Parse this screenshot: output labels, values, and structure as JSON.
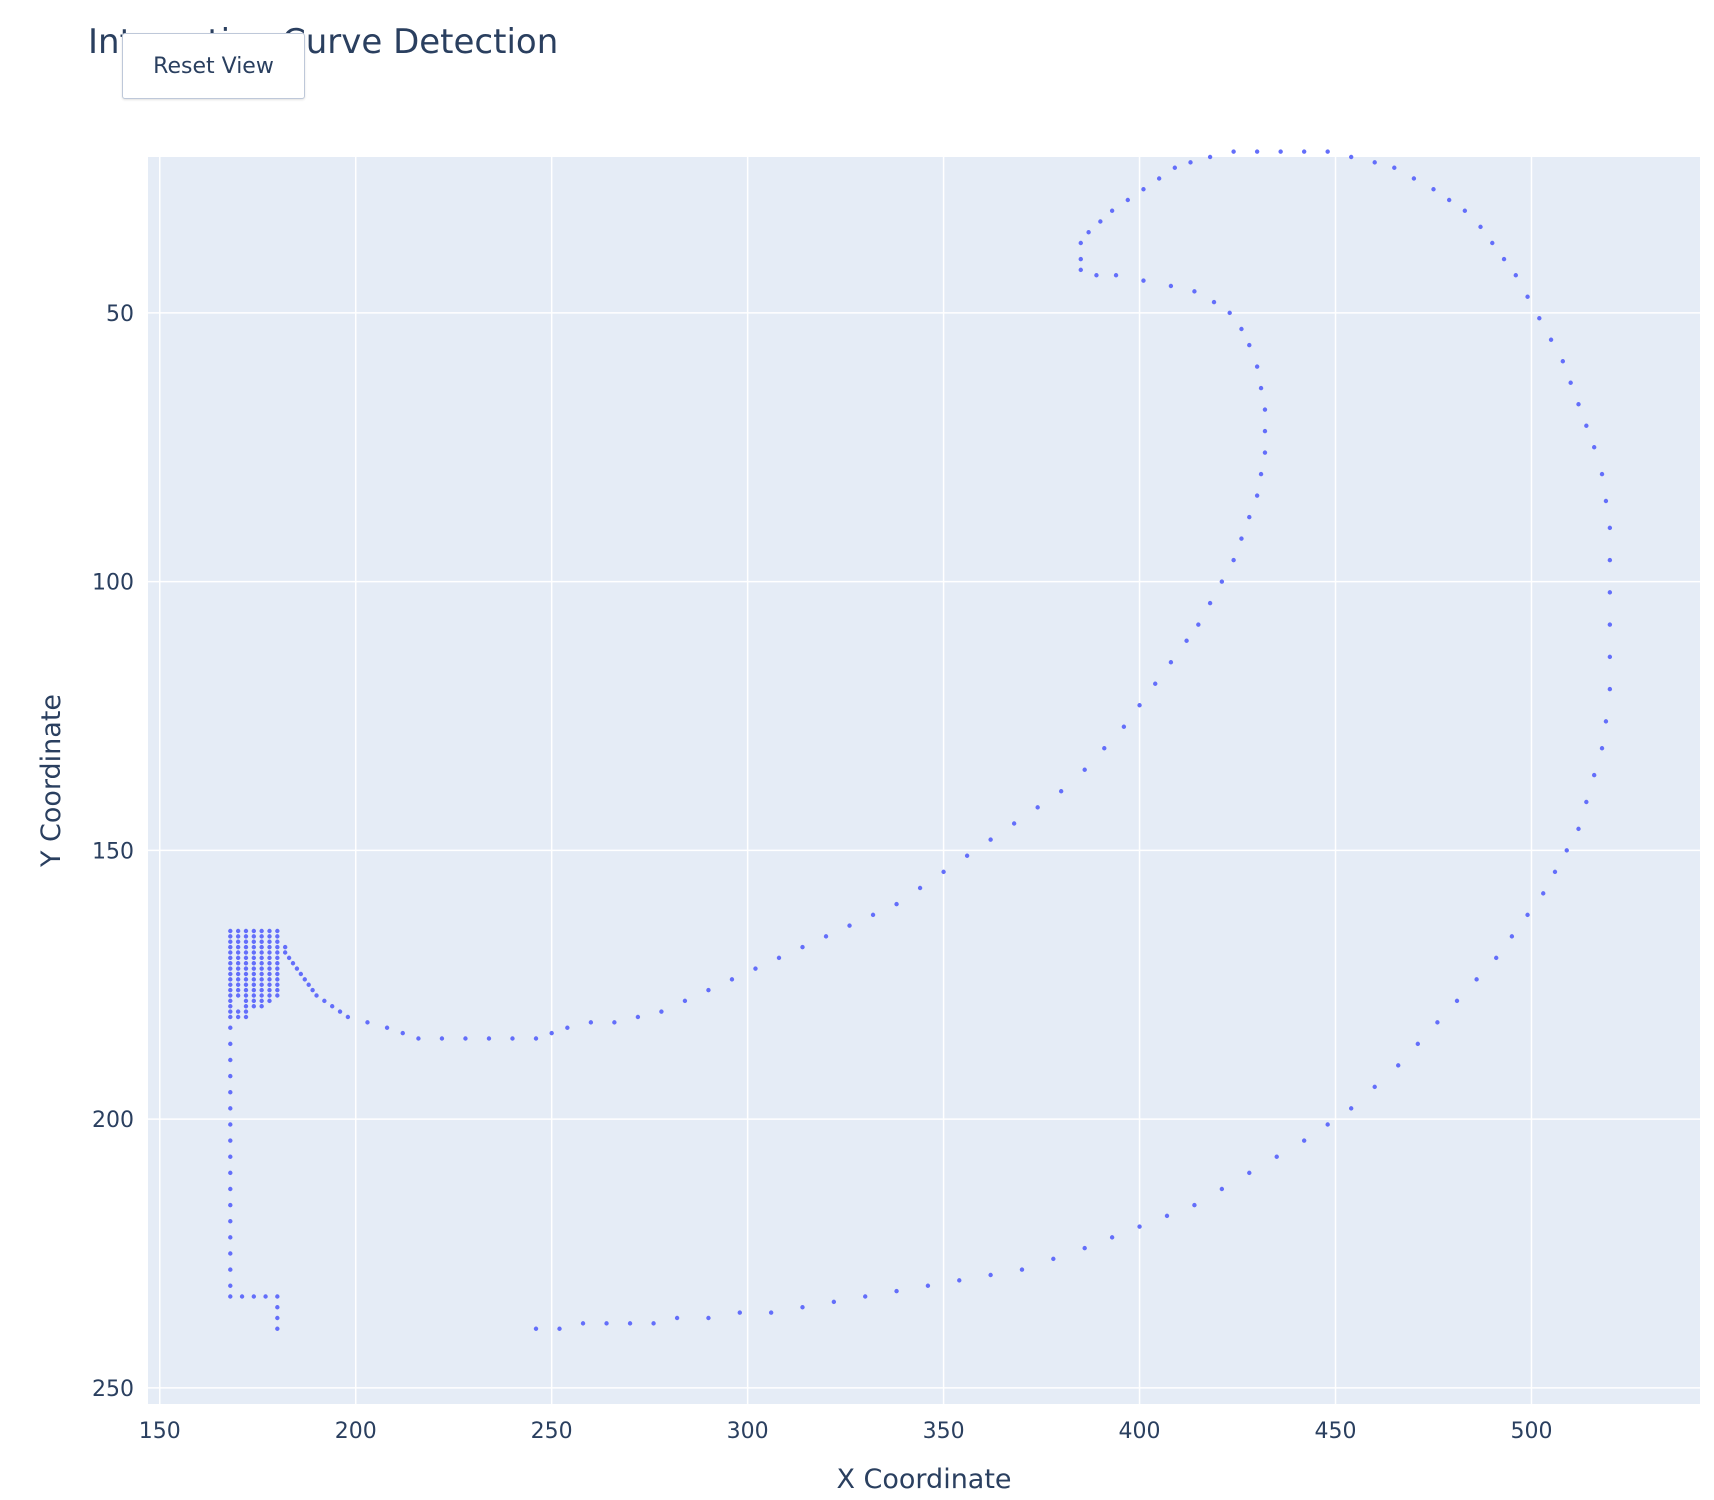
{
  "chart_title": "Interactive Curve Detection",
  "reset_button_label": "Reset View",
  "chart_data": {
    "type": "scatter",
    "title": "Interactive Curve Detection",
    "xlabel": "X Coordinate",
    "ylabel": "Y Coordinate",
    "xlim": [
      147,
      543
    ],
    "ylim": [
      253,
      21
    ],
    "y_reversed": true,
    "x_ticks": [
      150,
      200,
      250,
      300,
      350,
      400,
      450,
      500
    ],
    "y_ticks": [
      50,
      100,
      150,
      200,
      250
    ],
    "grid": true,
    "legend": "none",
    "marker_color": "#636efa",
    "plot_bg": "#e5ecf6",
    "series": [
      {
        "values": [
          [
            168,
            165
          ],
          [
            170,
            165
          ],
          [
            172,
            165
          ],
          [
            174,
            165
          ],
          [
            176,
            165
          ],
          [
            178,
            165
          ],
          [
            180,
            165
          ],
          [
            168,
            166
          ],
          [
            170,
            166
          ],
          [
            172,
            166
          ],
          [
            174,
            166
          ],
          [
            176,
            166
          ],
          [
            178,
            166
          ],
          [
            180,
            166
          ],
          [
            168,
            167
          ],
          [
            170,
            167
          ],
          [
            172,
            167
          ],
          [
            174,
            167
          ],
          [
            176,
            167
          ],
          [
            178,
            167
          ],
          [
            180,
            167
          ],
          [
            168,
            168
          ],
          [
            170,
            168
          ],
          [
            172,
            168
          ],
          [
            174,
            168
          ],
          [
            176,
            168
          ],
          [
            178,
            168
          ],
          [
            180,
            168
          ],
          [
            182,
            168
          ],
          [
            168,
            169
          ],
          [
            170,
            169
          ],
          [
            172,
            169
          ],
          [
            174,
            169
          ],
          [
            176,
            169
          ],
          [
            178,
            169
          ],
          [
            180,
            169
          ],
          [
            182,
            169
          ],
          [
            168,
            170
          ],
          [
            170,
            170
          ],
          [
            172,
            170
          ],
          [
            174,
            170
          ],
          [
            176,
            170
          ],
          [
            178,
            170
          ],
          [
            180,
            170
          ],
          [
            183,
            170
          ],
          [
            168,
            171
          ],
          [
            170,
            171
          ],
          [
            172,
            171
          ],
          [
            174,
            171
          ],
          [
            176,
            171
          ],
          [
            178,
            171
          ],
          [
            180,
            171
          ],
          [
            184,
            171
          ],
          [
            168,
            172
          ],
          [
            170,
            172
          ],
          [
            172,
            172
          ],
          [
            174,
            172
          ],
          [
            176,
            172
          ],
          [
            178,
            172
          ],
          [
            180,
            172
          ],
          [
            185,
            172
          ],
          [
            168,
            173
          ],
          [
            170,
            173
          ],
          [
            172,
            173
          ],
          [
            174,
            173
          ],
          [
            176,
            173
          ],
          [
            178,
            173
          ],
          [
            180,
            173
          ],
          [
            186,
            173
          ],
          [
            168,
            174
          ],
          [
            170,
            174
          ],
          [
            172,
            174
          ],
          [
            174,
            174
          ],
          [
            176,
            174
          ],
          [
            178,
            174
          ],
          [
            180,
            174
          ],
          [
            187,
            174
          ],
          [
            168,
            175
          ],
          [
            170,
            175
          ],
          [
            172,
            175
          ],
          [
            174,
            175
          ],
          [
            176,
            175
          ],
          [
            178,
            175
          ],
          [
            180,
            175
          ],
          [
            188,
            175
          ],
          [
            168,
            176
          ],
          [
            170,
            176
          ],
          [
            172,
            176
          ],
          [
            174,
            176
          ],
          [
            176,
            176
          ],
          [
            178,
            176
          ],
          [
            180,
            176
          ],
          [
            189,
            176
          ],
          [
            168,
            177
          ],
          [
            170,
            177
          ],
          [
            172,
            177
          ],
          [
            174,
            177
          ],
          [
            176,
            177
          ],
          [
            178,
            177
          ],
          [
            180,
            177
          ],
          [
            190,
            177
          ],
          [
            168,
            178
          ],
          [
            172,
            178
          ],
          [
            174,
            178
          ],
          [
            176,
            178
          ],
          [
            178,
            178
          ],
          [
            192,
            178
          ],
          [
            168,
            179
          ],
          [
            172,
            179
          ],
          [
            174,
            179
          ],
          [
            176,
            179
          ],
          [
            194,
            179
          ],
          [
            168,
            180
          ],
          [
            170,
            180
          ],
          [
            172,
            180
          ],
          [
            196,
            180
          ],
          [
            168,
            181
          ],
          [
            170,
            181
          ],
          [
            172,
            181
          ],
          [
            198,
            181
          ],
          [
            203,
            182
          ],
          [
            208,
            183
          ],
          [
            212,
            184
          ],
          [
            216,
            185
          ],
          [
            222,
            185
          ],
          [
            228,
            185
          ],
          [
            234,
            185
          ],
          [
            240,
            185
          ],
          [
            246,
            185
          ],
          [
            250,
            184
          ],
          [
            254,
            183
          ],
          [
            260,
            182
          ],
          [
            266,
            182
          ],
          [
            272,
            181
          ],
          [
            278,
            180
          ],
          [
            284,
            178
          ],
          [
            290,
            176
          ],
          [
            296,
            174
          ],
          [
            302,
            172
          ],
          [
            308,
            170
          ],
          [
            314,
            168
          ],
          [
            320,
            166
          ],
          [
            326,
            164
          ],
          [
            332,
            162
          ],
          [
            338,
            160
          ],
          [
            344,
            157
          ],
          [
            350,
            154
          ],
          [
            356,
            151
          ],
          [
            362,
            148
          ],
          [
            368,
            145
          ],
          [
            374,
            142
          ],
          [
            380,
            139
          ],
          [
            386,
            135
          ],
          [
            391,
            131
          ],
          [
            396,
            127
          ],
          [
            400,
            123
          ],
          [
            404,
            119
          ],
          [
            408,
            115
          ],
          [
            412,
            111
          ],
          [
            415,
            108
          ],
          [
            418,
            104
          ],
          [
            421,
            100
          ],
          [
            424,
            96
          ],
          [
            426,
            92
          ],
          [
            428,
            88
          ],
          [
            430,
            84
          ],
          [
            431,
            80
          ],
          [
            432,
            76
          ],
          [
            432,
            72
          ],
          [
            432,
            68
          ],
          [
            431,
            64
          ],
          [
            430,
            60
          ],
          [
            428,
            56
          ],
          [
            426,
            53
          ],
          [
            423,
            50
          ],
          [
            419,
            48
          ],
          [
            414,
            46
          ],
          [
            408,
            45
          ],
          [
            401,
            44
          ],
          [
            394,
            43
          ],
          [
            389,
            43
          ],
          [
            385,
            42
          ],
          [
            385,
            40
          ],
          [
            385,
            37
          ],
          [
            387,
            35
          ],
          [
            390,
            33
          ],
          [
            393,
            31
          ],
          [
            397,
            29
          ],
          [
            401,
            27
          ],
          [
            405,
            25
          ],
          [
            409,
            23
          ],
          [
            413,
            22
          ],
          [
            418,
            21
          ],
          [
            424,
            20
          ],
          [
            430,
            20
          ],
          [
            436,
            20
          ],
          [
            442,
            20
          ],
          [
            448,
            20
          ],
          [
            454,
            21
          ],
          [
            460,
            22
          ],
          [
            465,
            23
          ],
          [
            470,
            25
          ],
          [
            475,
            27
          ],
          [
            479,
            29
          ],
          [
            483,
            31
          ],
          [
            487,
            34
          ],
          [
            490,
            37
          ],
          [
            493,
            40
          ],
          [
            496,
            43
          ],
          [
            499,
            47
          ],
          [
            502,
            51
          ],
          [
            505,
            55
          ],
          [
            508,
            59
          ],
          [
            510,
            63
          ],
          [
            512,
            67
          ],
          [
            514,
            71
          ],
          [
            516,
            75
          ],
          [
            518,
            80
          ],
          [
            519,
            85
          ],
          [
            520,
            90
          ],
          [
            520,
            96
          ],
          [
            520,
            102
          ],
          [
            520,
            108
          ],
          [
            520,
            114
          ],
          [
            520,
            120
          ],
          [
            519,
            126
          ],
          [
            518,
            131
          ],
          [
            516,
            136
          ],
          [
            514,
            141
          ],
          [
            512,
            146
          ],
          [
            509,
            150
          ],
          [
            506,
            154
          ],
          [
            503,
            158
          ],
          [
            499,
            162
          ],
          [
            495,
            166
          ],
          [
            491,
            170
          ],
          [
            486,
            174
          ],
          [
            481,
            178
          ],
          [
            476,
            182
          ],
          [
            471,
            186
          ],
          [
            466,
            190
          ],
          [
            460,
            194
          ],
          [
            454,
            198
          ],
          [
            448,
            201
          ],
          [
            442,
            204
          ],
          [
            435,
            207
          ],
          [
            428,
            210
          ],
          [
            421,
            213
          ],
          [
            414,
            216
          ],
          [
            407,
            218
          ],
          [
            400,
            220
          ],
          [
            393,
            222
          ],
          [
            386,
            224
          ],
          [
            378,
            226
          ],
          [
            370,
            228
          ],
          [
            362,
            229
          ],
          [
            354,
            230
          ],
          [
            346,
            231
          ],
          [
            338,
            232
          ],
          [
            330,
            233
          ],
          [
            322,
            234
          ],
          [
            314,
            235
          ],
          [
            306,
            236
          ],
          [
            298,
            236
          ],
          [
            290,
            237
          ],
          [
            282,
            237
          ],
          [
            276,
            238
          ],
          [
            270,
            238
          ],
          [
            264,
            238
          ],
          [
            258,
            238
          ],
          [
            252,
            239
          ],
          [
            246,
            239
          ],
          [
            168,
            183
          ],
          [
            168,
            186
          ],
          [
            168,
            189
          ],
          [
            168,
            192
          ],
          [
            168,
            195
          ],
          [
            168,
            198
          ],
          [
            168,
            201
          ],
          [
            168,
            204
          ],
          [
            168,
            207
          ],
          [
            168,
            210
          ],
          [
            168,
            213
          ],
          [
            168,
            216
          ],
          [
            168,
            219
          ],
          [
            168,
            222
          ],
          [
            168,
            225
          ],
          [
            168,
            228
          ],
          [
            168,
            231
          ],
          [
            168,
            233
          ],
          [
            171,
            233
          ],
          [
            174,
            233
          ],
          [
            177,
            233
          ],
          [
            180,
            233
          ],
          [
            180,
            235
          ],
          [
            180,
            237
          ],
          [
            180,
            239
          ]
        ]
      }
    ]
  }
}
